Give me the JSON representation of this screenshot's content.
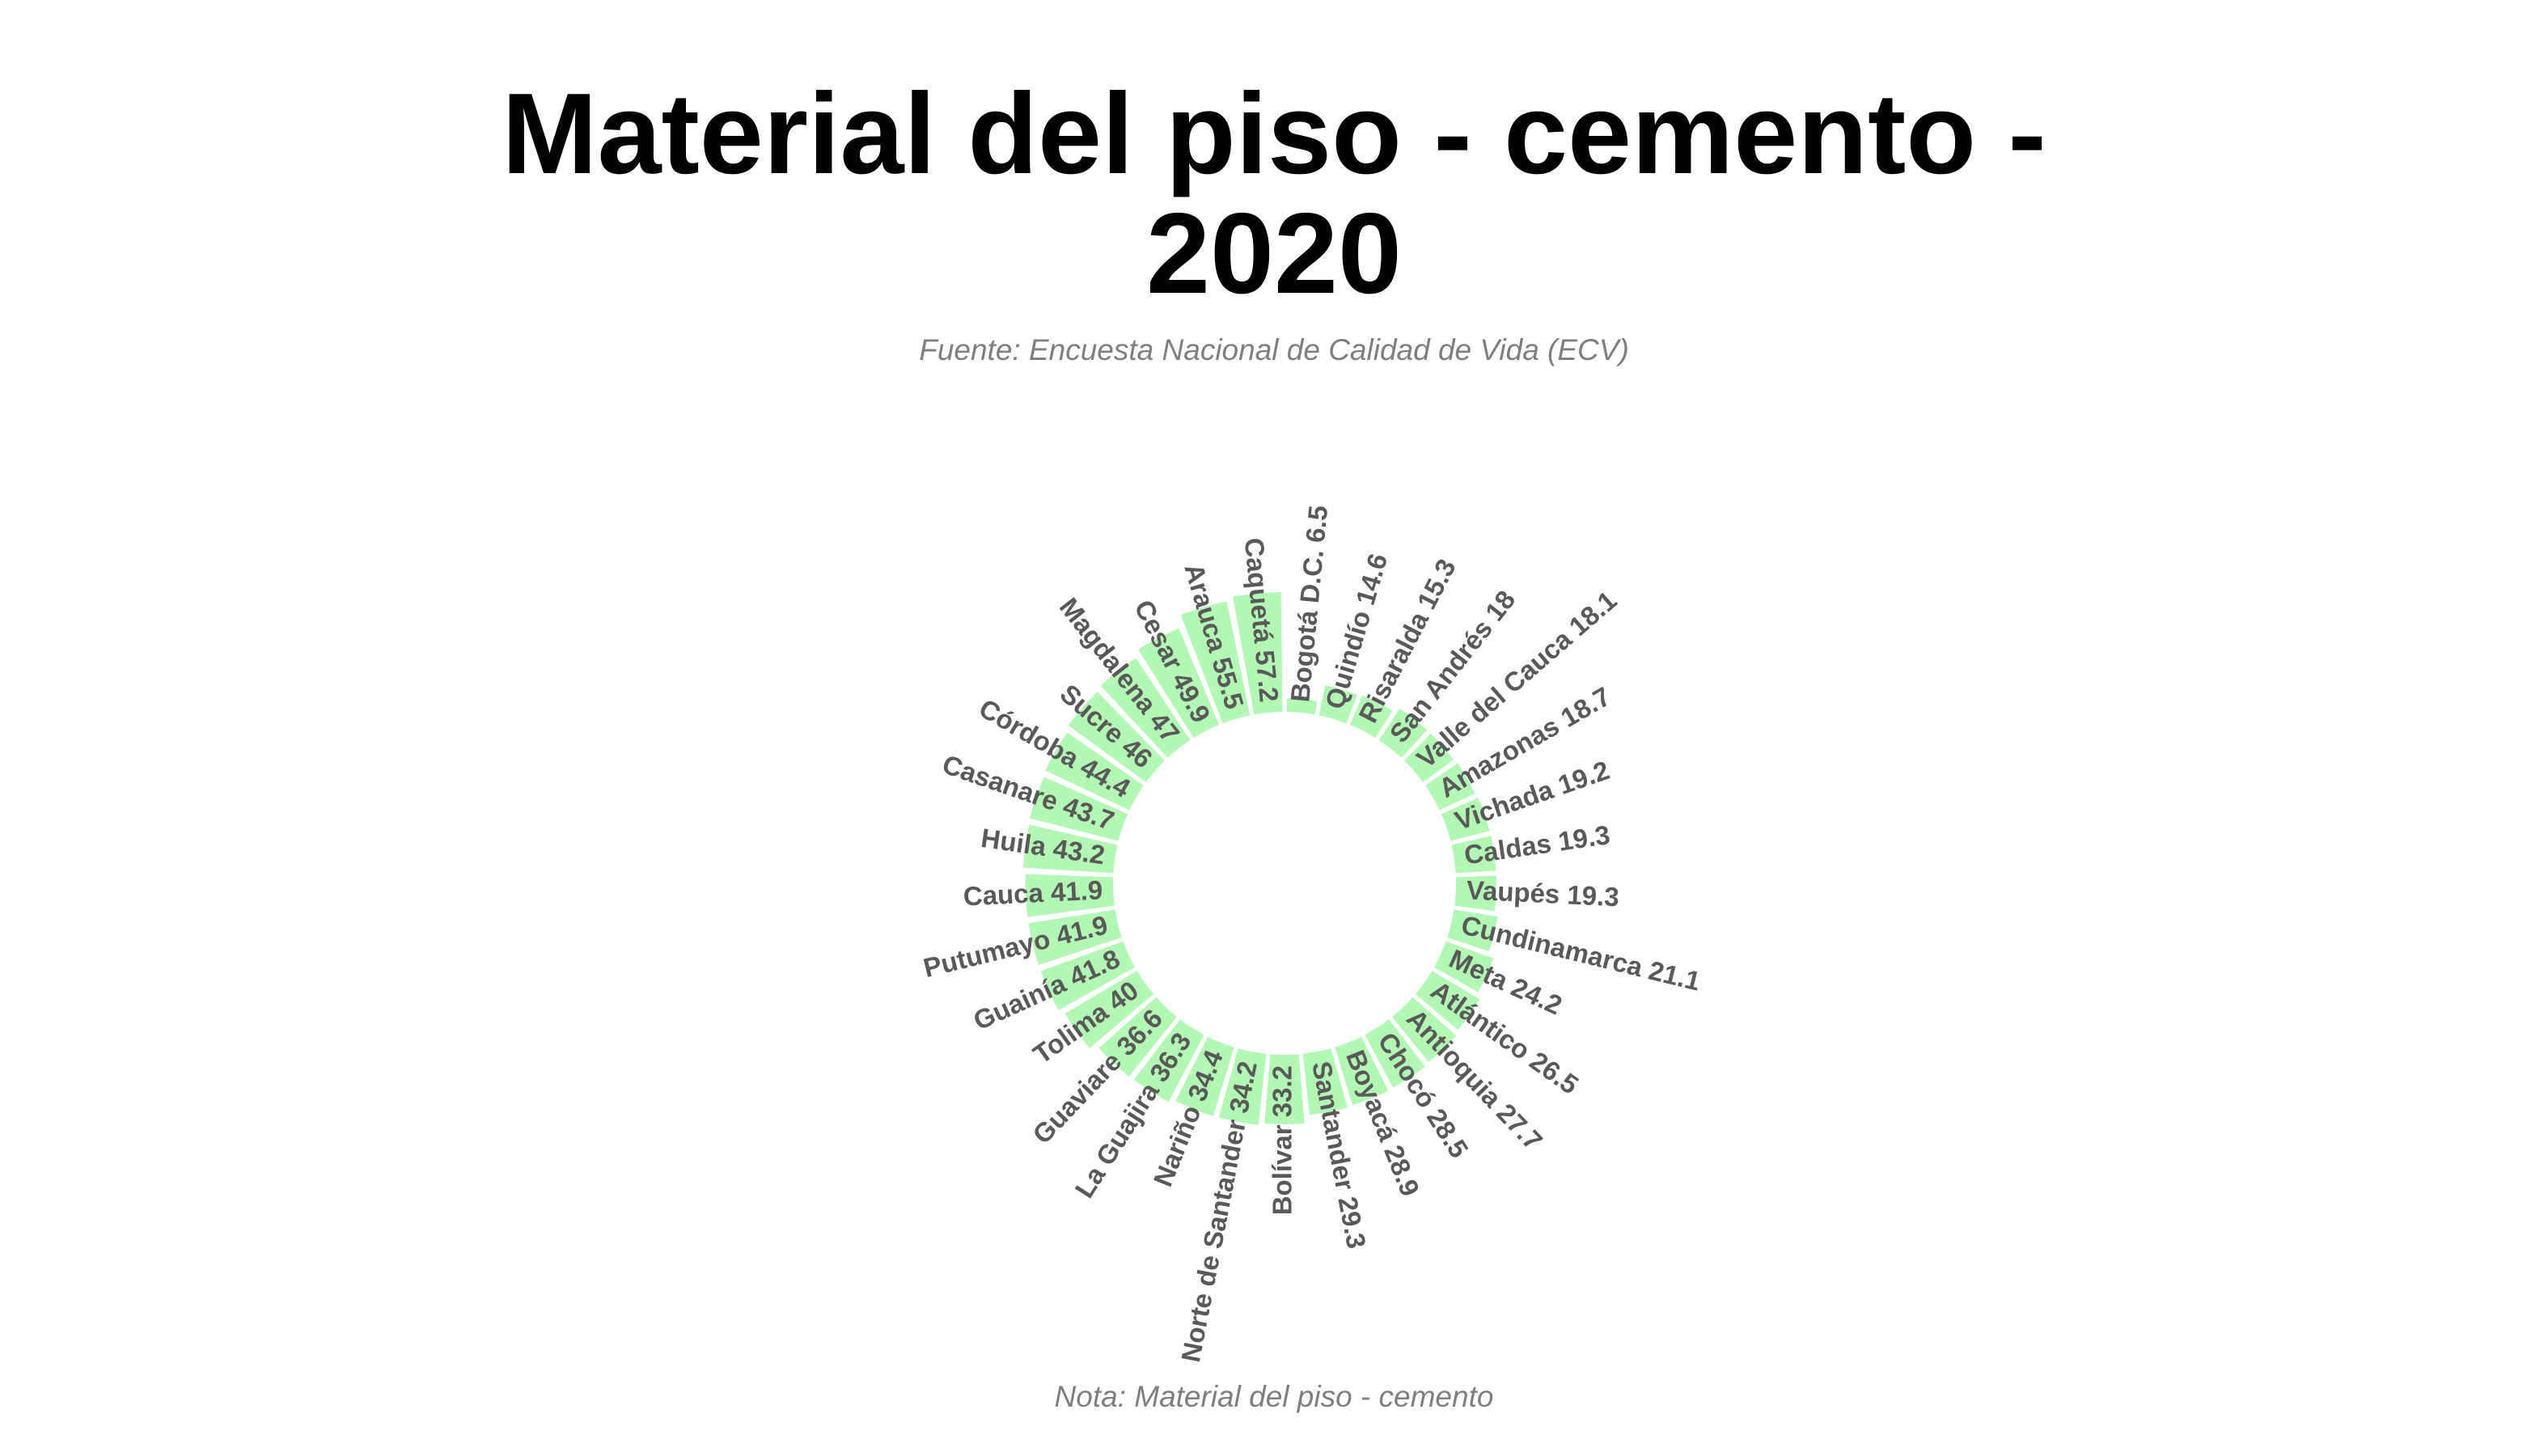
{
  "chart_data": {
    "type": "bar",
    "layout": "radial",
    "title": "Material del piso - cemento - 2020",
    "title_lines": [
      "Material del piso - cemento -",
      "2020"
    ],
    "subtitle": "Fuente: Encuesta Nacional de Calidad de Vida (ECV)",
    "note": "Nota: Material del piso - cemento",
    "grid": false,
    "legend": false,
    "bar_color": "#b3f7b5",
    "label_color": "#595959",
    "categories": [
      "Caquetá",
      "Arauca",
      "Cesar",
      "Magdalena",
      "Sucre",
      "Córdoba",
      "Casanare",
      "Huila",
      "Cauca",
      "Putumayo",
      "Guainía",
      "Tolima",
      "Guaviare",
      "La Guajira",
      "Nariño",
      "Norte de Santander",
      "Bolívar",
      "Santander",
      "Boyacá",
      "Chocó",
      "Antioquia",
      "Atlántico",
      "Meta",
      "Cundinamarca",
      "Vaupés",
      "Caldas",
      "Vichada",
      "Amazonas",
      "Valle del Cauca",
      "San Andrés",
      "Risaralda",
      "Quindío",
      "Bogotá D.C."
    ],
    "values": [
      57.2,
      55.5,
      49.9,
      47,
      46,
      44.4,
      43.7,
      43.2,
      41.9,
      41.9,
      41.8,
      40,
      36.6,
      36.3,
      34.4,
      34.2,
      33.2,
      29.3,
      28.9,
      28.5,
      27.7,
      26.5,
      24.2,
      21.1,
      19.3,
      19.3,
      19.2,
      18.7,
      18.1,
      18,
      15.3,
      14.6,
      6.5
    ],
    "labels": [
      "Caquetá 57.2",
      "Arauca 55.5",
      "Cesar 49.9",
      "Magdalena 47",
      "Sucre 46",
      "Córdoba 44.4",
      "Casanare 43.7",
      "Huila 43.2",
      "Cauca 41.9",
      "Putumayo 41.9",
      "Guainía 41.8",
      "Tolima 40",
      "Guaviare 36.6",
      "La Guajira 36.3",
      "Nariño 34.4",
      "Norte de Santander 34.2",
      "Bolívar 33.2",
      "Santander 29.3",
      "Boyacá 28.9",
      "Chocó 28.5",
      "Antioquia 27.7",
      "Atlántico 26.5",
      "Meta 24.2",
      "Cundinamarca 21.1",
      "Vaupés 19.3",
      "Caldas 19.3",
      "Vichada 19.2",
      "Amazonas 18.7",
      "Valle del Cauca 18.1",
      "San Andrés 18",
      "Risaralda 15.3",
      "Quindío 14.6",
      "Bogotá D.C. 6.5"
    ],
    "ylim": [
      0,
      57.2
    ]
  }
}
